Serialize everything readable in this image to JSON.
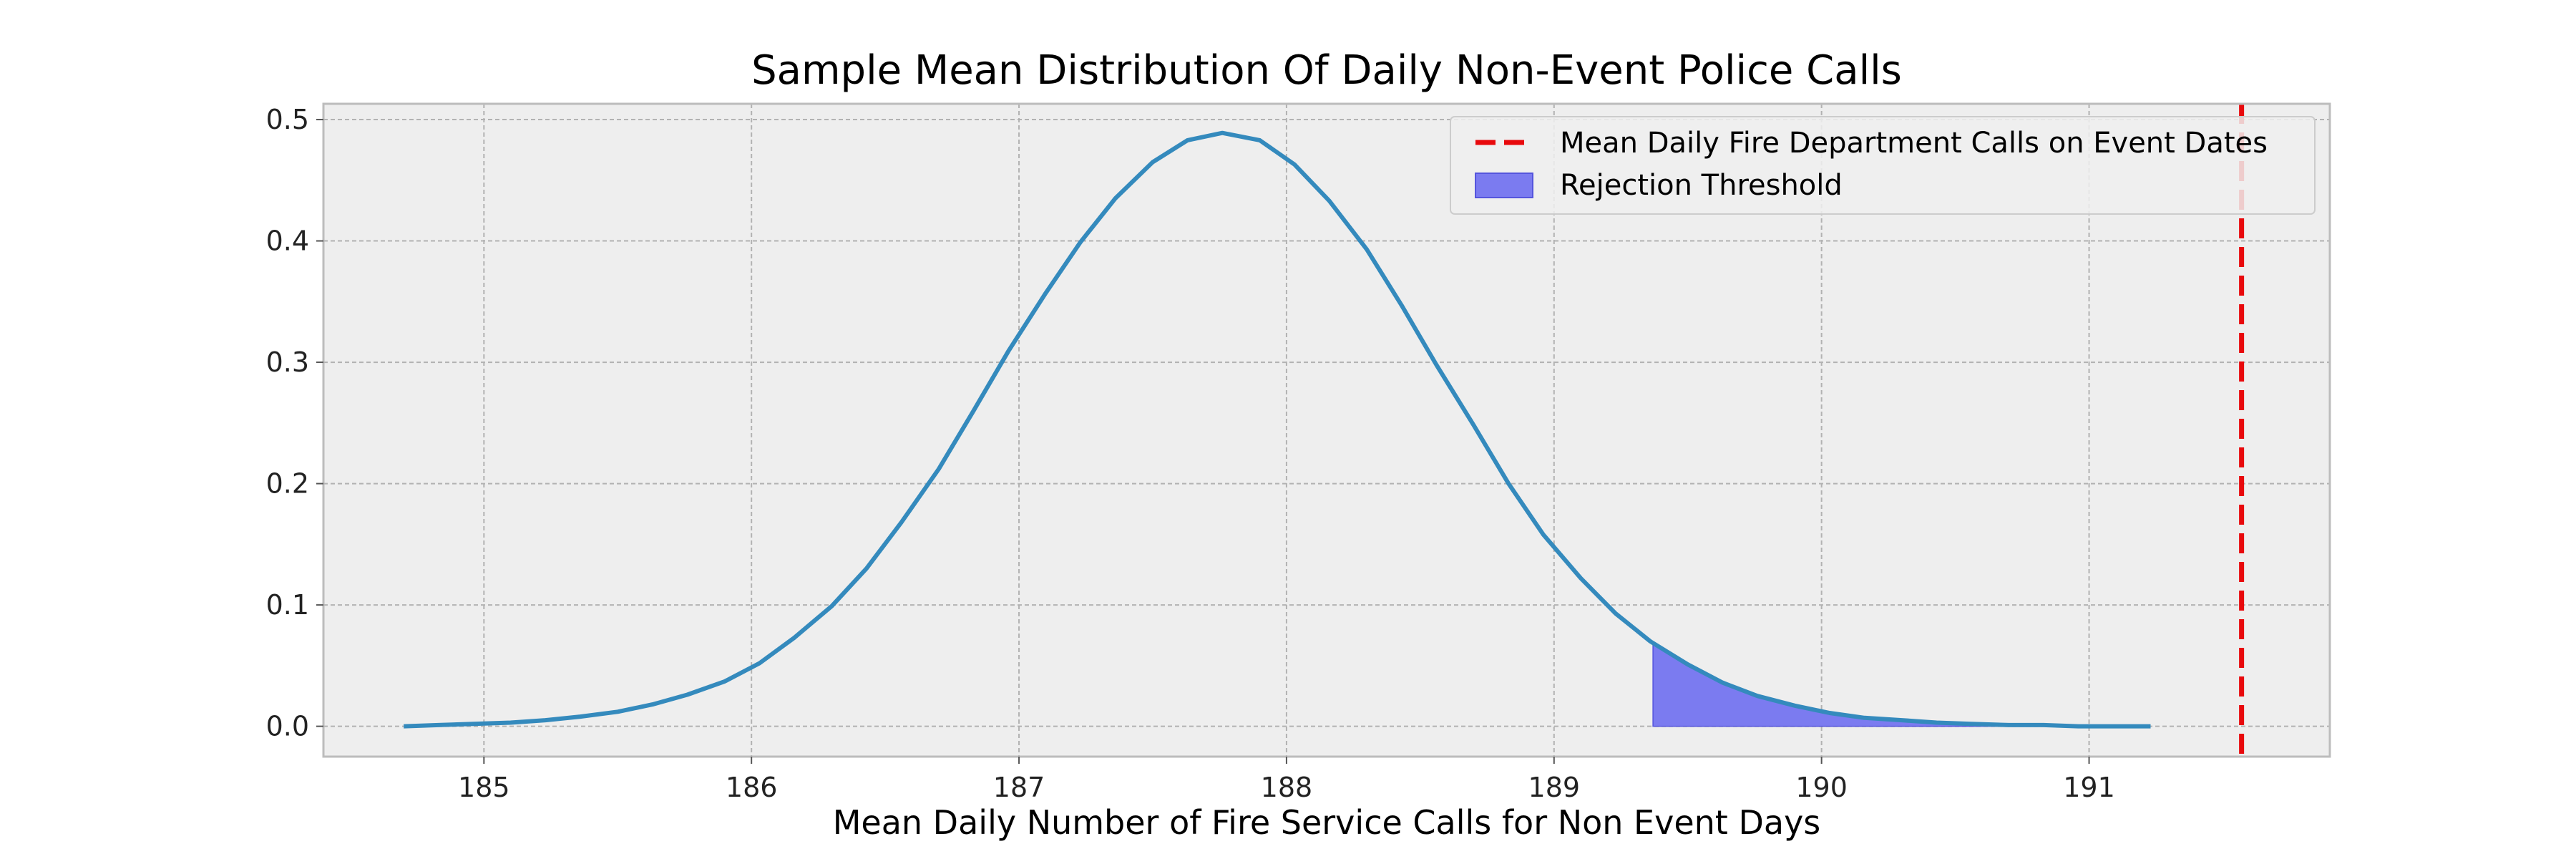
{
  "chart_data": {
    "type": "line",
    "title": "Sample Mean Distribution Of Daily Non-Event Police Calls",
    "xlabel": "Mean Daily Number of Fire Service Calls for Non Event Days",
    "ylabel": "",
    "xlim": [
      184.4,
      191.9
    ],
    "ylim": [
      -0.025,
      0.513
    ],
    "x_ticks": [
      185,
      186,
      187,
      188,
      189,
      190,
      191
    ],
    "y_ticks": [
      0.0,
      0.1,
      0.2,
      0.3,
      0.4,
      0.5
    ],
    "x_tick_labels": [
      "185",
      "186",
      "187",
      "188",
      "189",
      "190",
      "191"
    ],
    "y_tick_labels": [
      "0.0",
      "0.1",
      "0.2",
      "0.3",
      "0.4",
      "0.5"
    ],
    "grid": true,
    "legend_position": "top-right",
    "series": [
      {
        "kind": "line",
        "color": "#348ABD",
        "x": [
          184.7,
          184.83,
          184.96,
          185.1,
          185.23,
          185.36,
          185.5,
          185.63,
          185.76,
          185.9,
          186.03,
          186.16,
          186.3,
          186.43,
          186.56,
          186.7,
          186.83,
          186.96,
          187.1,
          187.23,
          187.36,
          187.5,
          187.63,
          187.76,
          187.9,
          188.03,
          188.16,
          188.3,
          188.43,
          188.56,
          188.7,
          188.83,
          188.96,
          189.1,
          189.23,
          189.36,
          189.5,
          189.63,
          189.76,
          189.9,
          190.03,
          190.16,
          190.3,
          190.43,
          190.56,
          190.7,
          190.83,
          190.96,
          191.1,
          191.23
        ],
        "y": [
          0.0,
          0.001,
          0.002,
          0.003,
          0.005,
          0.008,
          0.012,
          0.018,
          0.026,
          0.037,
          0.052,
          0.073,
          0.099,
          0.13,
          0.168,
          0.212,
          0.26,
          0.309,
          0.357,
          0.399,
          0.435,
          0.465,
          0.483,
          0.489,
          0.483,
          0.463,
          0.433,
          0.393,
          0.347,
          0.298,
          0.248,
          0.2,
          0.158,
          0.122,
          0.093,
          0.07,
          0.051,
          0.036,
          0.025,
          0.017,
          0.011,
          0.007,
          0.005,
          0.003,
          0.002,
          0.001,
          0.001,
          0.0,
          0.0,
          0.0
        ]
      },
      {
        "kind": "area",
        "name": "Rejection Threshold",
        "color": "#7B7BF0",
        "x_start": 189.37
      },
      {
        "kind": "vline",
        "name": "Mean Daily Fire Department Calls on Event Dates",
        "color": "#E8090C",
        "x": 191.57
      }
    ]
  }
}
